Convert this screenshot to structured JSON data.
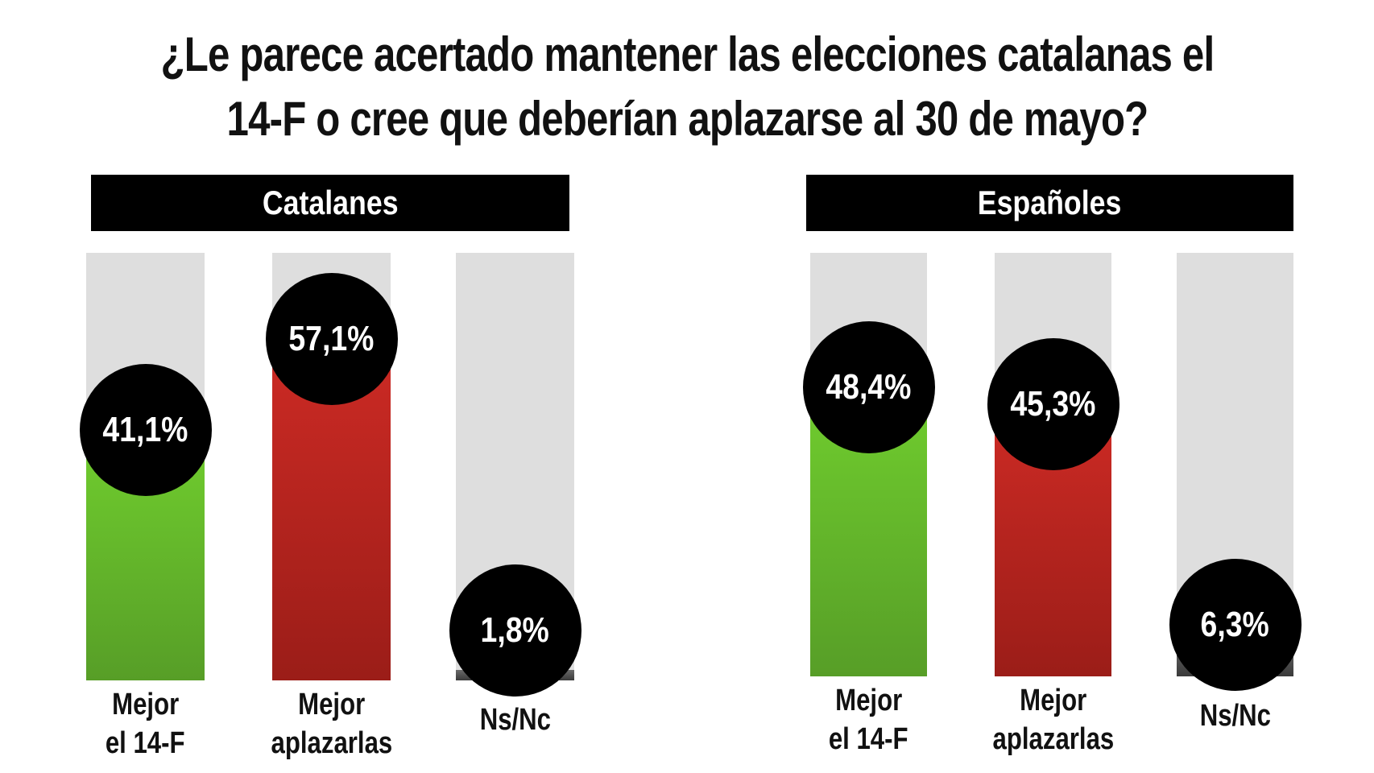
{
  "chart_data": {
    "type": "bar",
    "title": [
      "¿Le parece acertado mantener las elecciones catalanas el",
      "14-F o cree que deberían aplazarse al 30 de mayo?"
    ],
    "ylim": [
      0,
      75
    ],
    "panels": [
      {
        "name": "Catalanes",
        "categories": [
          [
            "Mejor",
            "el 14-F"
          ],
          [
            "Mejor",
            "aplazarlas"
          ],
          [
            "Ns/Nc"
          ]
        ],
        "values": [
          41.1,
          57.1,
          1.8
        ],
        "labels": [
          "41,1%",
          "57,1%",
          "1,8%"
        ]
      },
      {
        "name": "Españoles",
        "categories": [
          [
            "Mejor",
            "el 14-F"
          ],
          [
            "Mejor",
            "aplazarlas"
          ],
          [
            "Ns/Nc"
          ]
        ],
        "values": [
          48.4,
          45.3,
          6.3
        ],
        "labels": [
          "48,4%",
          "45,3%",
          "6,3%"
        ]
      }
    ],
    "colors": {
      "green": [
        "#6fcb2e",
        "#579e27"
      ],
      "red": [
        "#cb2a24",
        "#9b1d18"
      ],
      "gray": [
        "#6a6a6a",
        "#3a3a3a"
      ],
      "track": "#dedede"
    }
  }
}
